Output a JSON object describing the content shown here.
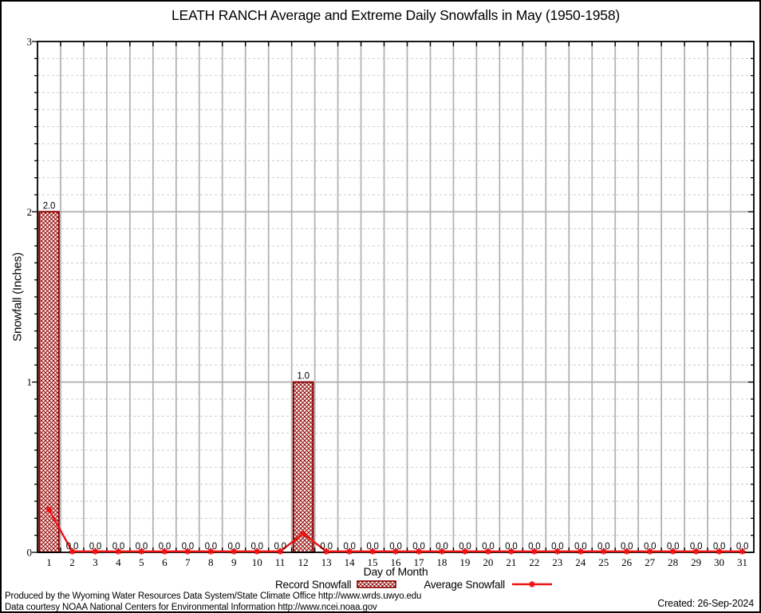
{
  "page": {
    "footer_line1": "Produced by the Wyoming Water Resources Data System/State Climate Office http://www.wrds.uwyo.edu",
    "footer_line2": "Data courtesy NOAA National Centers for Environmental Information http://www.ncei.noaa.gov",
    "created": "Created: 26-Sep-2024"
  },
  "chart_data": {
    "type": "bar",
    "title": "LEATH RANCH Average and Extreme Daily Snowfalls in May (1950-1958)",
    "xlabel": "Day of Month",
    "ylabel": "Snowfall (Inches)",
    "ylim": [
      0,
      3
    ],
    "y_major_ticks": [
      0,
      1,
      2,
      3
    ],
    "y_minor_step": 0.1,
    "grid": true,
    "legend_position": "bottom",
    "x": [
      1,
      2,
      3,
      4,
      5,
      6,
      7,
      8,
      9,
      10,
      11,
      12,
      13,
      14,
      15,
      16,
      17,
      18,
      19,
      20,
      21,
      22,
      23,
      24,
      25,
      26,
      27,
      28,
      29,
      30,
      31
    ],
    "series": [
      {
        "name": "Record Snowfall",
        "type": "bar",
        "values": [
          2.0,
          0.0,
          0.0,
          0.0,
          0.0,
          0.0,
          0.0,
          0.0,
          0.0,
          0.0,
          0.0,
          1.0,
          0.0,
          0.0,
          0.0,
          0.0,
          0.0,
          0.0,
          0.0,
          0.0,
          0.0,
          0.0,
          0.0,
          0.0,
          0.0,
          0.0,
          0.0,
          0.0,
          0.0,
          0.0,
          0.0
        ]
      },
      {
        "name": "Average Snowfall",
        "type": "line",
        "values": [
          0.25,
          0.0,
          0.0,
          0.0,
          0.0,
          0.0,
          0.0,
          0.0,
          0.0,
          0.0,
          0.0,
          0.11,
          0.0,
          0.0,
          0.0,
          0.0,
          0.0,
          0.0,
          0.0,
          0.0,
          0.0,
          0.0,
          0.0,
          0.0,
          0.0,
          0.0,
          0.0,
          0.0,
          0.0,
          0.0,
          0.0
        ]
      }
    ],
    "colors": {
      "record": "#8b0000",
      "record_hatch": "#96100e",
      "average": "#ee1111",
      "grid_major": "#b3b3b3",
      "grid_minor": "#cbcbcb",
      "axis": "#000000"
    }
  }
}
